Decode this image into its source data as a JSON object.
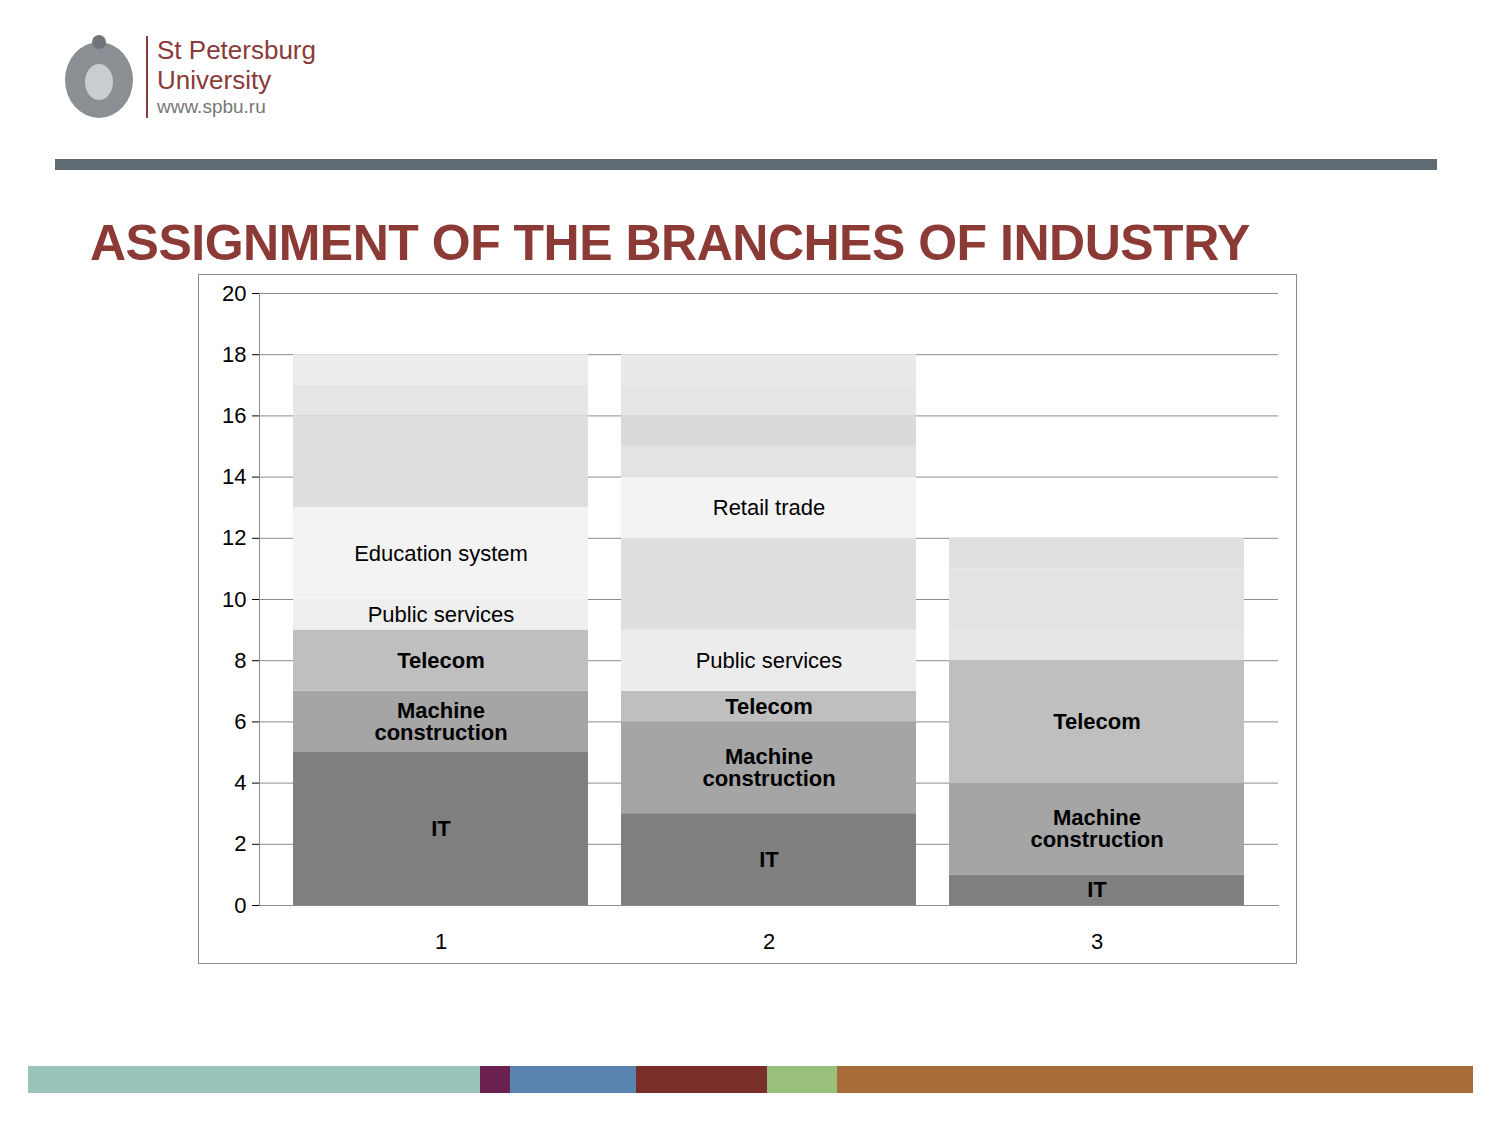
{
  "header": {
    "institution": [
      "St Petersburg",
      "University"
    ],
    "url": "www.spbu.ru"
  },
  "chart_data": {
    "type": "bar",
    "title": "ASSIGNMENT OF THE BRANCHES OF INDUSTRY",
    "stacked": true,
    "categories": [
      "1",
      "2",
      "3"
    ],
    "segments": [
      [
        {
          "label": "IT",
          "value": 5,
          "color": "#7f7f7f"
        },
        {
          "label": "Machine construction",
          "value": 2,
          "color": "#a5a5a5"
        },
        {
          "label": "Telecom",
          "value": 2,
          "color": "#bfbfbf"
        },
        {
          "label": "Public services",
          "value": 1,
          "color": "#eeeeee"
        },
        {
          "label": "Education system",
          "value": 3,
          "color": "#f3f3f3"
        },
        {
          "label": null,
          "value": 3,
          "color": "#dedede"
        },
        {
          "label": null,
          "value": 1,
          "color": "#e6e6e6"
        },
        {
          "label": null,
          "value": 1,
          "color": "#ececec"
        }
      ],
      [
        {
          "label": "IT",
          "value": 3,
          "color": "#7f7f7f"
        },
        {
          "label": "Machine construction",
          "value": 3,
          "color": "#a5a5a5"
        },
        {
          "label": "Telecom",
          "value": 1,
          "color": "#bfbfbf"
        },
        {
          "label": "Public services",
          "value": 2,
          "color": "#ececec"
        },
        {
          "label": null,
          "value": 3,
          "color": "#dedede"
        },
        {
          "label": "Retail trade",
          "value": 2,
          "color": "#f3f3f3"
        },
        {
          "label": null,
          "value": 1,
          "color": "#e3e3e3"
        },
        {
          "label": null,
          "value": 1,
          "color": "#dadada"
        },
        {
          "label": null,
          "value": 1,
          "color": "#e6e6e6"
        },
        {
          "label": null,
          "value": 1,
          "color": "#e9e9e9"
        }
      ],
      [
        {
          "label": "IT",
          "value": 1,
          "color": "#7f7f7f"
        },
        {
          "label": "Machine construction",
          "value": 3,
          "color": "#a5a5a5"
        },
        {
          "label": "Telecom",
          "value": 4,
          "color": "#bfbfbf"
        },
        {
          "label": null,
          "value": 1,
          "color": "#e6e6e6"
        },
        {
          "label": null,
          "value": 2,
          "color": "#e3e3e3"
        },
        {
          "label": null,
          "value": 1,
          "color": "#e0e0e0"
        }
      ]
    ],
    "ylim": [
      0,
      20
    ],
    "yticks": [
      0,
      2,
      4,
      6,
      8,
      10,
      12,
      14,
      16,
      18,
      20
    ],
    "grid": true
  }
}
